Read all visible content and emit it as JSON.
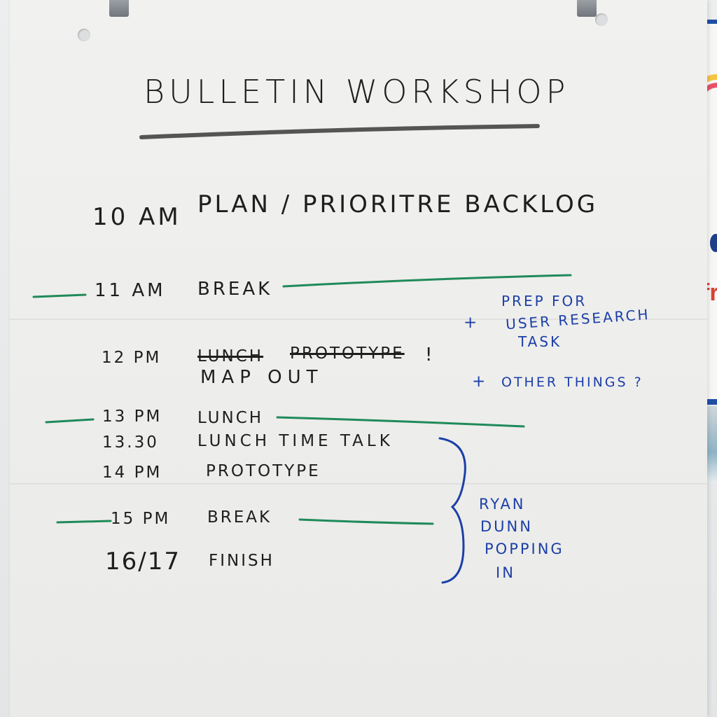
{
  "title": "BULLETIN WORKSHOP",
  "schedule": [
    {
      "time": "10 AM",
      "activity": "PLAN / PRIORITRE BACKLOG"
    },
    {
      "time": "11 AM",
      "activity": "BREAK"
    },
    {
      "time": "12 PM",
      "struck_1": "LUNCH",
      "struck_2": "PROTOTYPE",
      "exclaim": "!",
      "activity": "MAP OUT"
    },
    {
      "time": "13 PM",
      "activity": "LUNCH"
    },
    {
      "time": "13.30",
      "activity": "LUNCH TIME TALK"
    },
    {
      "time": "14 PM",
      "activity": "PROTOTYPE"
    },
    {
      "time": "15 PM",
      "activity": "BREAK"
    },
    {
      "time": "16/17",
      "activity": "FINISH"
    }
  ],
  "notes": {
    "prep_plus": "+",
    "prep_lines": [
      "PREP FOR",
      "USER RESEARCH",
      "TASK"
    ],
    "other_plus": "+",
    "other_things": "OTHER THINGS ?",
    "visitor_lines": [
      "RYAN",
      "DUNN",
      "POPPING",
      "IN"
    ]
  },
  "colors": {
    "black_marker": "#1e1e1e",
    "blue_marker": "#1c3fa8",
    "green_marker": "#1f8a5a",
    "grey_marker": "#555555",
    "poster_blue": "#1f4fa6",
    "poster_red": "#d64133"
  }
}
